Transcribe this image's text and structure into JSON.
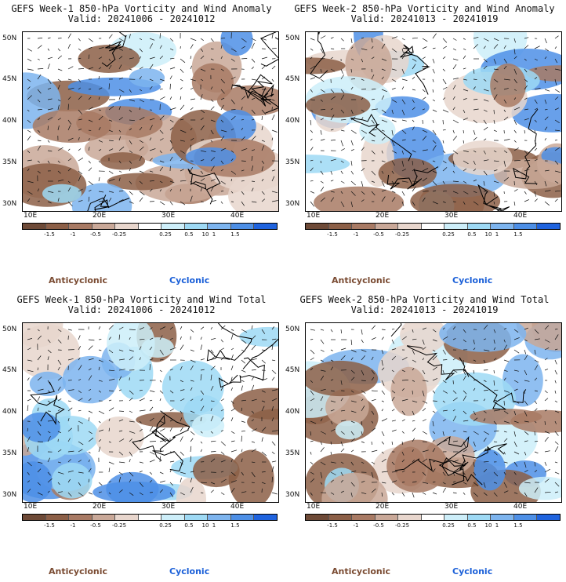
{
  "panels": [
    {
      "line1": "GEFS Week-1 850-hPa Vorticity and Wind Anomaly",
      "line2": "Valid: 20241006 - 20241012"
    },
    {
      "line1": "GEFS Week-2 850-hPa Vorticity and Wind Anomaly",
      "line2": "Valid: 20241013 - 20241019"
    },
    {
      "line1": "GEFS Week-1 850-hPa Vorticity and Wind Total",
      "line2": "Valid: 20241006 - 20241012"
    },
    {
      "line1": "GEFS Week-2 850-hPa Vorticity and Wind Total",
      "line2": "Valid: 20241013 - 20241019"
    }
  ],
  "lat_labels": [
    "50N",
    "45N",
    "40N",
    "35N",
    "30N"
  ],
  "lon_labels": [
    "10E",
    "20E",
    "30E",
    "40E"
  ],
  "colorbar": {
    "ticks": [
      "-1.5",
      "-1",
      "-0.5",
      "-0.25",
      "0.25",
      "0.5",
      "1",
      "1.5"
    ],
    "scale_label": "10",
    "colors": [
      "#6e4a37",
      "#8c5f47",
      "#a87a64",
      "#c9a898",
      "#e8d6cd",
      "#ffffff",
      "#cdeef9",
      "#9ed9f4",
      "#7db4ee",
      "#4d8fe6",
      "#1f63de"
    ]
  },
  "legend": {
    "anticyclonic": "Anticyclonic",
    "cyclonic": "Cyclonic"
  },
  "colors": {
    "anticyclonic": "#7a4b32",
    "cyclonic": "#1a5fd8"
  }
}
